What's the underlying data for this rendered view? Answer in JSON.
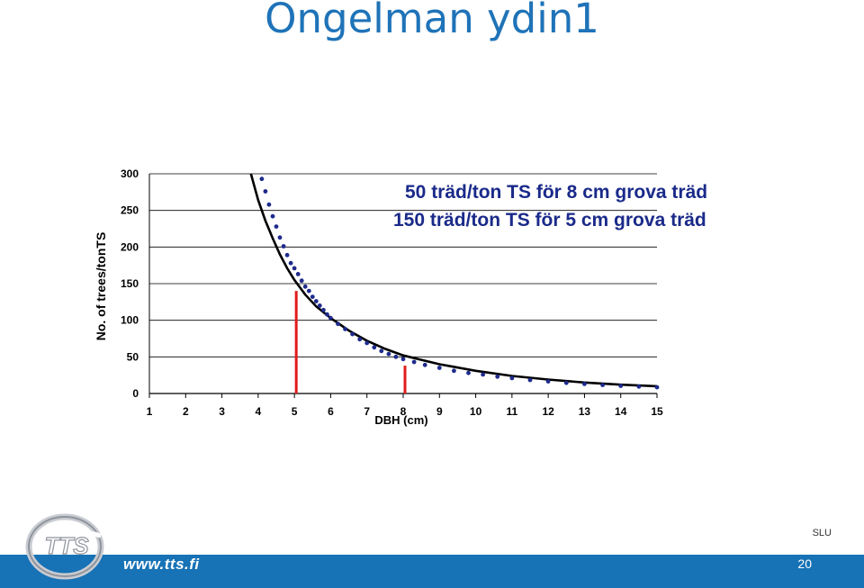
{
  "slide": {
    "title": "Ongelman ydin1",
    "annotations": [
      "50 träd/ton TS för 8 cm grova träd",
      "150 träd/ton TS för 5 cm grova träd"
    ],
    "source_label": "SLU",
    "website": "www.tts.fi",
    "page_number": "20",
    "logo_text": "TTS"
  },
  "colors": {
    "title": "#1f73b8",
    "annotation": "#1a2a8a",
    "points": "#1e2a8c",
    "curve": "#000000",
    "marker_lines": "#e01b1b",
    "footer": "#1772b6"
  },
  "chart_data": {
    "type": "scatter",
    "xlabel": "DBH (cm)",
    "ylabel": "No. of trees/tonTS",
    "xlim": [
      1,
      15
    ],
    "ylim": [
      0,
      300
    ],
    "x_ticks": [
      "1",
      "2",
      "3",
      "4",
      "5",
      "6",
      "7",
      "8",
      "9",
      "10",
      "11",
      "12",
      "13",
      "14",
      "15"
    ],
    "y_ticks": [
      "0",
      "50",
      "100",
      "150",
      "200",
      "250",
      "300"
    ],
    "grid": true,
    "series": [
      {
        "kind": "points",
        "x": [
          4.1,
          4.2,
          4.3,
          4.4,
          4.5,
          4.6,
          4.7,
          4.8,
          4.9,
          5.0,
          5.1,
          5.2,
          5.3,
          5.4,
          5.5,
          5.6,
          5.7,
          5.8,
          5.9,
          6.0,
          6.2,
          6.4,
          6.6,
          6.8,
          7.0,
          7.2,
          7.4,
          7.6,
          7.8,
          8.0,
          8.3,
          8.6,
          9.0,
          9.4,
          9.8,
          10.2,
          10.6,
          11.0,
          11.5,
          12.0,
          12.5,
          13.0,
          13.5,
          14.0,
          14.5,
          15.0
        ],
        "y": [
          293,
          276,
          258,
          242,
          228,
          213,
          201,
          189,
          178,
          171,
          163,
          154,
          146,
          140,
          132,
          126,
          120,
          114,
          108,
          103,
          95,
          88,
          81,
          74,
          69,
          63,
          58,
          54,
          50,
          47,
          43,
          39,
          35,
          31,
          28,
          26,
          23,
          21,
          18.5,
          16.5,
          14.5,
          13,
          11.5,
          10.5,
          9.5,
          8.5
        ]
      },
      {
        "kind": "curve",
        "x": [
          3.8,
          4.0,
          4.2,
          4.4,
          4.6,
          4.8,
          5.0,
          5.3,
          5.6,
          6.0,
          6.5,
          7.0,
          7.5,
          8.0,
          8.5,
          9.0,
          10.0,
          11.0,
          12.0,
          13.0,
          14.0,
          15.0
        ],
        "y": [
          300,
          264,
          236,
          212,
          190,
          171,
          155,
          135,
          119,
          103,
          86,
          72,
          61,
          52,
          46,
          40,
          31,
          24,
          19,
          15,
          12,
          10
        ]
      }
    ],
    "markers": [
      {
        "x": 5.05,
        "y": 140
      },
      {
        "x": 8.05,
        "y": 38
      }
    ]
  }
}
